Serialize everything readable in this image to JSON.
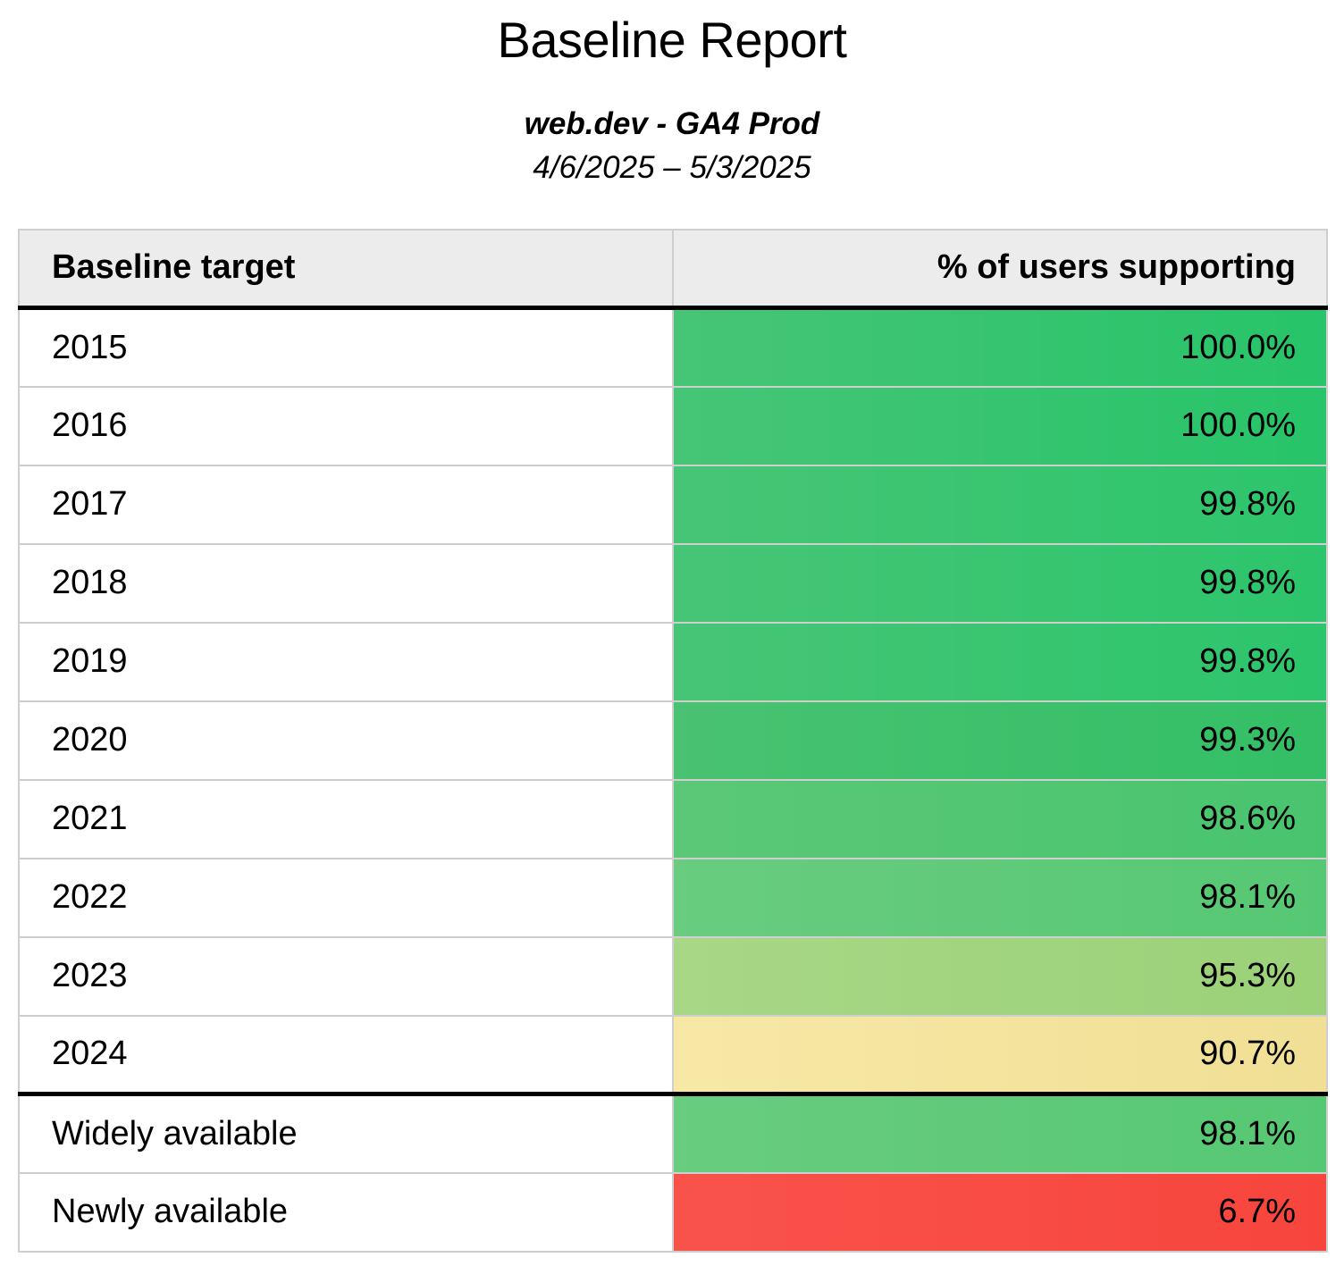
{
  "chart_data": {
    "type": "table",
    "title": "Baseline Report",
    "subtitle": "web.dev - GA4 Prod",
    "date_range": "4/6/2025 – 5/3/2025",
    "columns": [
      "Baseline target",
      "% of users supporting"
    ],
    "rows": [
      {
        "target": "2015",
        "value_pct": 100.0,
        "display": "100.0%",
        "cell_color_left": "#46C577",
        "cell_color_right": "#27C469",
        "heavy_border_above": false
      },
      {
        "target": "2016",
        "value_pct": 100.0,
        "display": "100.0%",
        "cell_color_left": "#46C577",
        "cell_color_right": "#27C469",
        "heavy_border_above": false
      },
      {
        "target": "2017",
        "value_pct": 99.8,
        "display": "99.8%",
        "cell_color_left": "#47C576",
        "cell_color_right": "#2CC56C",
        "heavy_border_above": false
      },
      {
        "target": "2018",
        "value_pct": 99.8,
        "display": "99.8%",
        "cell_color_left": "#47C576",
        "cell_color_right": "#2CC56C",
        "heavy_border_above": false
      },
      {
        "target": "2019",
        "value_pct": 99.8,
        "display": "99.8%",
        "cell_color_left": "#47C576",
        "cell_color_right": "#2CC56C",
        "heavy_border_above": false
      },
      {
        "target": "2020",
        "value_pct": 99.3,
        "display": "99.3%",
        "cell_color_left": "#49C271",
        "cell_color_right": "#33BF66",
        "heavy_border_above": false
      },
      {
        "target": "2021",
        "value_pct": 98.6,
        "display": "98.6%",
        "cell_color_left": "#5BC877",
        "cell_color_right": "#49C46E",
        "heavy_border_above": false
      },
      {
        "target": "2022",
        "value_pct": 98.1,
        "display": "98.1%",
        "cell_color_left": "#69CC7F",
        "cell_color_right": "#56C873",
        "heavy_border_above": false
      },
      {
        "target": "2023",
        "value_pct": 95.3,
        "display": "95.3%",
        "cell_color_left": "#A8D786",
        "cell_color_right": "#9BD178",
        "heavy_border_above": false
      },
      {
        "target": "2024",
        "value_pct": 90.7,
        "display": "90.7%",
        "cell_color_left": "#F7E8A6",
        "cell_color_right": "#F0DF94",
        "heavy_border_above": false
      },
      {
        "target": "Widely available",
        "value_pct": 98.1,
        "display": "98.1%",
        "cell_color_left": "#69CC7F",
        "cell_color_right": "#56C873",
        "heavy_border_above": true
      },
      {
        "target": "Newly available",
        "value_pct": 6.7,
        "display": "6.7%",
        "cell_color_left": "#F8534B",
        "cell_color_right": "#F7453D",
        "heavy_border_above": false
      }
    ],
    "style_colors": {
      "header_bg": "#ECECEC",
      "row_border": "#CFCFCF",
      "section_border": "#000000",
      "text": "#000000",
      "scale_high_green": "#2CC56C",
      "scale_mid_yellow": "#F3E29C",
      "scale_low_red": "#F7493F"
    },
    "layout_hints": {
      "value_column_alignment": "right",
      "target_column_alignment": "left",
      "heavy_divider_after_row": "2024"
    }
  }
}
